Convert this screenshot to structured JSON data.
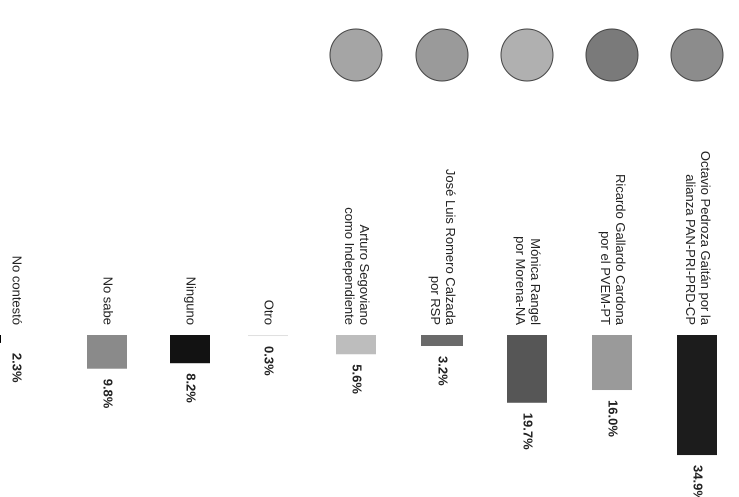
{
  "chart_data": {
    "type": "bar",
    "categories": [
      [
        "Octavio Pedroza Gaitán por la",
        "alianza PAN-PRI-PRD-CP"
      ],
      [
        "Ricardo Gallardo Cardona",
        "por el PVEM-PT"
      ],
      [
        "Mónica Rangel",
        "por Morena-NA"
      ],
      [
        "José Luis Romero Calzada",
        "por RSP"
      ],
      [
        "Arturo Segoviano",
        "como Independiente"
      ],
      [
        "Otro"
      ],
      [
        "Ninguno"
      ],
      [
        "No sabe"
      ],
      [
        "No contestó"
      ]
    ],
    "values": [
      34.9,
      16.0,
      19.7,
      3.2,
      5.6,
      0.3,
      8.2,
      9.8,
      2.3
    ],
    "value_labels": [
      "34.9%",
      "16.0%",
      "19.7%",
      "3.2%",
      "5.6%",
      "0.3%",
      "8.2%",
      "9.8%",
      "2.3%"
    ],
    "colors": [
      "#1c1c1c",
      "#9a9a9a",
      "#565656",
      "#6a6a6a",
      "#bdbdbd",
      "#e0e0e0",
      "#121212",
      "#8a8a8a",
      "#000000"
    ]
  }
}
